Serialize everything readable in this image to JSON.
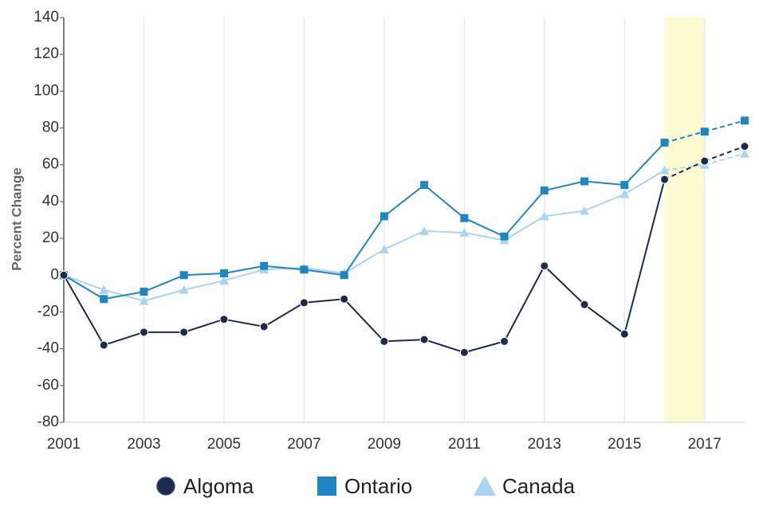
{
  "chart_data": {
    "type": "line",
    "y_label": "Percent Change",
    "x": [
      2001,
      2002,
      2003,
      2004,
      2005,
      2006,
      2007,
      2008,
      2009,
      2010,
      2011,
      2012,
      2013,
      2014,
      2015,
      2016,
      2017,
      2018
    ],
    "series": [
      {
        "name": "Algoma",
        "color": "#1c2a4d",
        "marker": "circle",
        "values": [
          0,
          -38,
          -31,
          -31,
          -24,
          -28,
          -15,
          -13,
          -36,
          -35,
          -42,
          -36,
          5,
          -16,
          -32,
          52,
          62,
          70
        ]
      },
      {
        "name": "Ontario",
        "color": "#1f86c4",
        "marker": "square",
        "values": [
          0,
          -13,
          -9,
          0,
          1,
          5,
          3,
          0,
          32,
          49,
          31,
          21,
          46,
          51,
          49,
          72,
          78,
          84
        ]
      },
      {
        "name": "Canada",
        "color": "#a9d5f2",
        "marker": "triangle",
        "values": [
          0,
          -8,
          -14,
          -8,
          -3,
          3,
          4,
          1,
          14,
          24,
          23,
          19,
          32,
          35,
          44,
          57,
          60,
          66
        ]
      }
    ],
    "xlim": [
      2001,
      2018
    ],
    "xticks": [
      2001,
      2003,
      2005,
      2007,
      2009,
      2011,
      2013,
      2015,
      2017
    ],
    "ylim": [
      -80,
      140
    ],
    "yticks": [
      -80,
      -60,
      -40,
      -20,
      0,
      20,
      40,
      60,
      80,
      100,
      120,
      140
    ],
    "grid": true,
    "dashed_from": 2016,
    "highlight": [
      2016,
      2017
    ],
    "highlight_color": "#fdfbd2",
    "legend": "bottom"
  }
}
